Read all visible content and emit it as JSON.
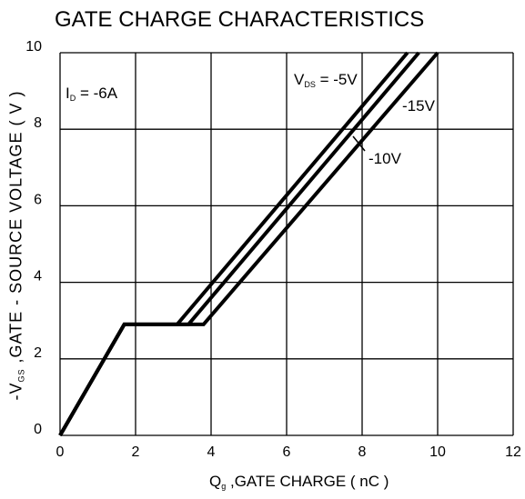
{
  "chart_data": {
    "type": "line",
    "title": "GATE CHARGE CHARACTERISTICS",
    "xlabel": {
      "main": "Q",
      "sub": "g",
      "rest": " ,GATE CHARGE ( nC )"
    },
    "ylabel": {
      "main": "-V",
      "sub": "GS",
      "rest": " ,GATE - SOURCE VOLTAGE ( V )"
    },
    "xlim": [
      0,
      12
    ],
    "ylim": [
      0,
      10
    ],
    "x_ticks": [
      "0",
      "2",
      "4",
      "6",
      "8",
      "10",
      "12"
    ],
    "y_ticks": [
      "0",
      "2",
      "4",
      "6",
      "8",
      "10"
    ],
    "grid": true,
    "annotations": {
      "id": {
        "main": "I",
        "sub": "D",
        "rest": " = -6A"
      },
      "vds": {
        "main": "V",
        "sub": "DS",
        "rest": " = -5V"
      },
      "v15": "-15V",
      "v10": "-10V"
    },
    "series": [
      {
        "name": "-5V",
        "points": [
          [
            0,
            0
          ],
          [
            1.7,
            2.9
          ],
          [
            3.1,
            2.9
          ],
          [
            9.2,
            10
          ]
        ]
      },
      {
        "name": "-10V",
        "points": [
          [
            0,
            0
          ],
          [
            1.7,
            2.9
          ],
          [
            3.4,
            2.9
          ],
          [
            9.5,
            10
          ]
        ]
      },
      {
        "name": "-15V",
        "points": [
          [
            0,
            0
          ],
          [
            1.7,
            2.9
          ],
          [
            3.8,
            2.9
          ],
          [
            10.0,
            10
          ]
        ]
      }
    ],
    "line_color": "#000000"
  }
}
